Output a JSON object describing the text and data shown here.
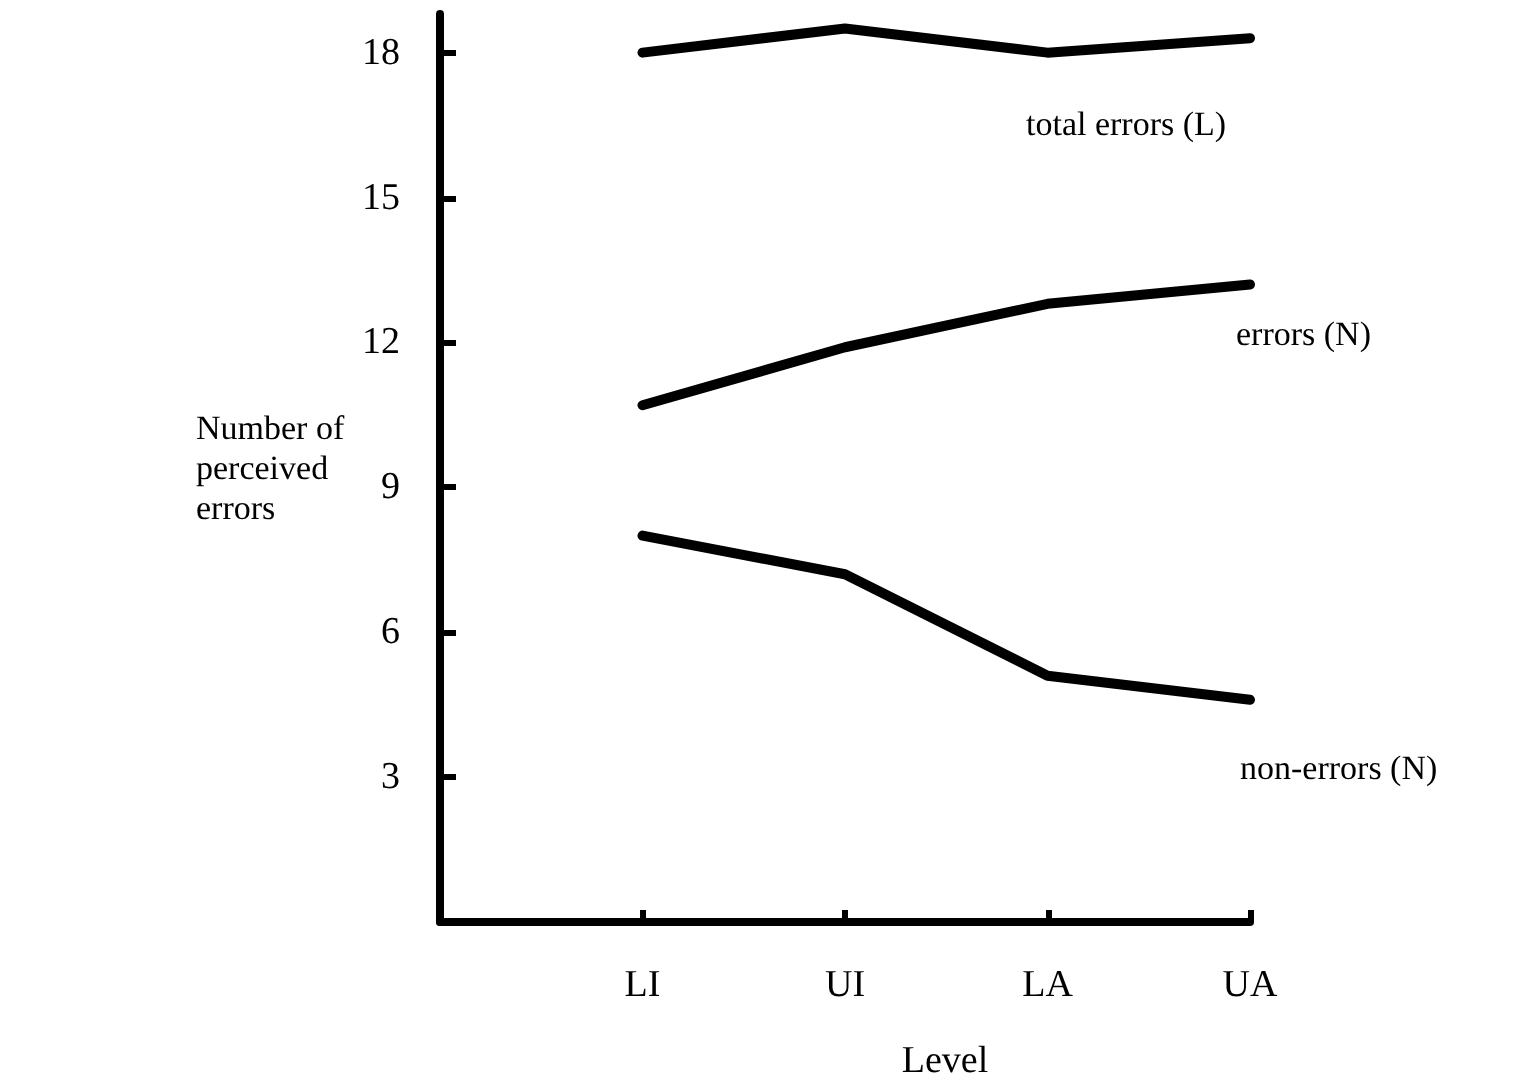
{
  "chart_data": {
    "type": "line",
    "xlabel": "Level",
    "ylabel": "Number of\nperceived\nerrors",
    "categories": [
      null,
      "LI",
      "UI",
      "LA",
      "UA"
    ],
    "series": [
      {
        "name": "total errors (L)",
        "color": "#000000",
        "values": [
          null,
          18.0,
          18.5,
          18.0,
          18.3
        ]
      },
      {
        "name": "errors (N)",
        "color": "#000000",
        "values": [
          null,
          10.7,
          11.9,
          12.8,
          13.2
        ]
      },
      {
        "name": "non-errors (N)",
        "color": "#000000",
        "values": [
          null,
          8.0,
          7.2,
          5.1,
          4.6
        ]
      }
    ],
    "ylim": [
      0,
      18.8
    ],
    "yticks": [
      3,
      6,
      9,
      12,
      15,
      18
    ],
    "grid": false,
    "legend": false,
    "marker": "none",
    "line_style": "solid"
  }
}
